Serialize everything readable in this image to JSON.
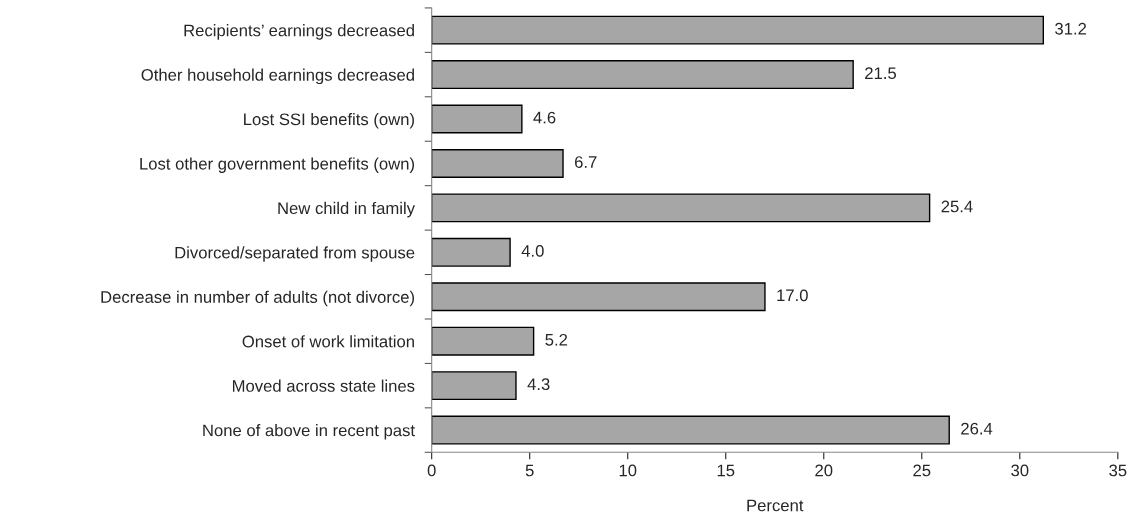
{
  "chart_data": {
    "type": "bar",
    "orientation": "horizontal",
    "categories": [
      "Recipients’ earnings decreased",
      "Other household earnings decreased",
      "Lost SSI benefits (own)",
      "Lost other government benefits (own)",
      "New child in family",
      "Divorced/separated from spouse",
      "Decrease in number of adults (not divorce)",
      "Onset of work limitation",
      "Moved across state lines",
      "None of above in recent past"
    ],
    "values": [
      31.2,
      21.5,
      4.6,
      6.7,
      25.4,
      4.0,
      17.0,
      5.2,
      4.3,
      26.4
    ],
    "color": "#a6a6a6",
    "xlabel": "Percent",
    "xlim": [
      0,
      35
    ],
    "xticks": [
      0,
      5,
      10,
      15,
      20,
      25,
      30,
      35
    ],
    "value_labels": [
      "31.2",
      "21.5",
      "4.6",
      "6.7",
      "25.4",
      "4.0",
      "17.0",
      "5.2",
      "4.3",
      "26.4"
    ],
    "grid": false,
    "legend": false
  }
}
